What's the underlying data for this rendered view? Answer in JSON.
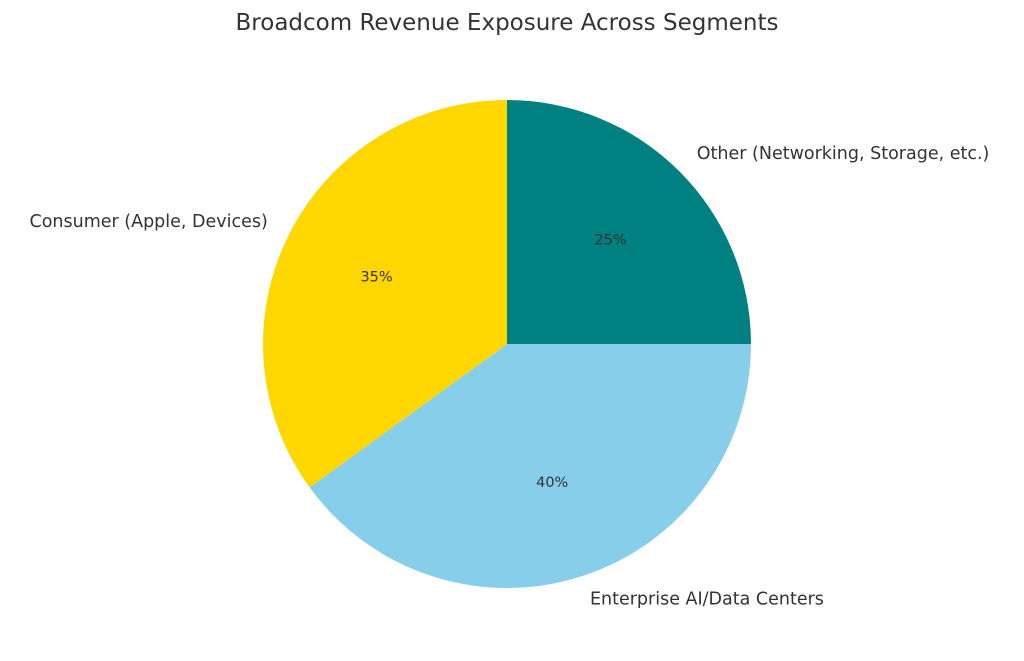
{
  "chart_data": {
    "type": "pie",
    "title": "Broadcom Revenue Exposure Across Segments",
    "start_angle": 90,
    "direction": "clockwise",
    "slices": [
      {
        "label": "Other (Networking, Storage, etc.)",
        "value": 25,
        "pct_label": "25%",
        "color": "#008080"
      },
      {
        "label": "Enterprise AI/Data Centers",
        "value": 40,
        "pct_label": "40%",
        "color": "#87CEEB"
      },
      {
        "label": "Consumer (Apple, Devices)",
        "value": 35,
        "pct_label": "35%",
        "color": "#FFD700"
      }
    ]
  }
}
